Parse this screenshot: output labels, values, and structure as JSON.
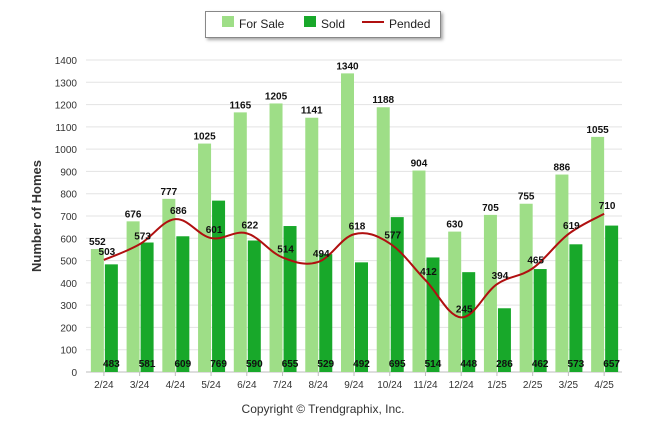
{
  "chart_data": {
    "type": "bar",
    "categories": [
      "2/24",
      "3/24",
      "4/24",
      "5/24",
      "6/24",
      "7/24",
      "8/24",
      "9/24",
      "10/24",
      "11/24",
      "12/24",
      "1/25",
      "2/25",
      "3/25",
      "4/25"
    ],
    "series": [
      {
        "name": "For Sale",
        "type": "bar",
        "color": "#9ede87",
        "values": [
          552,
          676,
          777,
          1025,
          1165,
          1205,
          1141,
          1340,
          1188,
          904,
          630,
          705,
          755,
          886,
          1055
        ]
      },
      {
        "name": "Sold",
        "type": "bar",
        "color": "#18a82a",
        "values": [
          483,
          581,
          609,
          769,
          590,
          655,
          529,
          492,
          695,
          514,
          448,
          286,
          462,
          573,
          657
        ]
      },
      {
        "name": "Pended",
        "type": "line",
        "color": "#b01010",
        "values": [
          503,
          573,
          686,
          601,
          622,
          514,
          494,
          618,
          577,
          412,
          245,
          394,
          465,
          619,
          710
        ]
      }
    ],
    "ylabel": "Number of Homes",
    "xlabel": "",
    "ylim": [
      0,
      1400
    ],
    "yticks": [
      0,
      100,
      200,
      300,
      400,
      500,
      600,
      700,
      800,
      900,
      1000,
      1100,
      1200,
      1300,
      1400
    ],
    "grid": true,
    "legend_position": "top-center"
  },
  "legend": {
    "for_sale_label": "For Sale",
    "sold_label": "Sold",
    "pended_label": "Pended"
  },
  "footer": {
    "copyright": "Copyright © Trendgraphix, Inc."
  }
}
